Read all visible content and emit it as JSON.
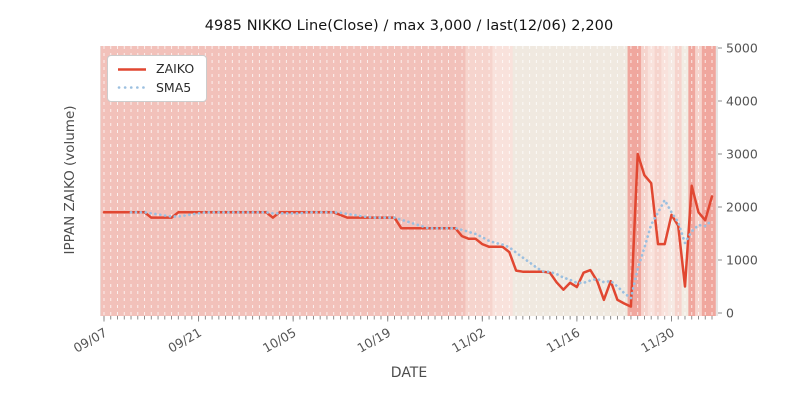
{
  "title": "4985 NIKKO Line(Close) / max 3,000 / last(12/06) 2,200",
  "legend": {
    "items": [
      {
        "label": "ZAIKO",
        "style": "solid",
        "color": "#e14731"
      },
      {
        "label": "SMA5",
        "style": "dotted",
        "color": "#9cc0e0"
      }
    ]
  },
  "chart_data": {
    "type": "line",
    "title": "4985 NIKKO Line(Close) / max 3,000 / last(12/06) 2,200",
    "xlabel": "DATE",
    "ylabel": "IPPAN ZAIKO (volume)",
    "ylim": [
      0,
      5000
    ],
    "yticks": [
      0,
      1000,
      2000,
      3000,
      4000,
      5000
    ],
    "x_is_daily_from": "09/07",
    "x_last_date": "12/06",
    "xtick_labels": [
      "09/07",
      "09/21",
      "10/05",
      "10/19",
      "11/02",
      "11/16",
      "11/30"
    ],
    "xtick_days": [
      0,
      14,
      28,
      42,
      56,
      70,
      84
    ],
    "grid": "vertical-dashed-white-per-day",
    "legend_position": "upper-left",
    "series": [
      {
        "name": "ZAIKO",
        "color": "#e14731",
        "style": "solid",
        "values": [
          1900,
          1900,
          1900,
          1900,
          1900,
          1900,
          1900,
          1800,
          1800,
          1800,
          1800,
          1900,
          1900,
          1900,
          1900,
          1900,
          1900,
          1900,
          1900,
          1900,
          1900,
          1900,
          1900,
          1900,
          1900,
          1800,
          1900,
          1900,
          1900,
          1900,
          1900,
          1900,
          1900,
          1900,
          1900,
          1850,
          1800,
          1800,
          1800,
          1800,
          1800,
          1800,
          1800,
          1800,
          1600,
          1600,
          1600,
          1600,
          1600,
          1600,
          1600,
          1600,
          1600,
          1450,
          1400,
          1400,
          1300,
          1250,
          1250,
          1250,
          1150,
          800,
          780,
          780,
          780,
          780,
          760,
          580,
          440,
          570,
          490,
          760,
          810,
          600,
          250,
          600,
          250,
          180,
          120,
          3000,
          2600,
          2450,
          1300,
          1300,
          1850,
          1650,
          500,
          2400,
          1900,
          1750,
          2200
        ]
      },
      {
        "name": "SMA5",
        "color": "#9cc0e0",
        "style": "dotted",
        "derived": "5-day simple moving average of ZAIKO"
      }
    ],
    "max_annotated": 3000,
    "last_annotated": 2200,
    "band_colors": {
      "d": "#f2c1ba",
      "p2": "#f6d4cd",
      "p1": "#f9e2dc",
      "c": "#f0e9e0",
      "cv": "#f6e9e3",
      "w": "#f2ece3",
      "s": "#f0a79e"
    },
    "bands_runlength": [
      [
        "d",
        54
      ],
      [
        "p2",
        4
      ],
      [
        "p1",
        3
      ],
      [
        "c",
        17
      ],
      [
        "s",
        2
      ],
      [
        "p2",
        1
      ],
      [
        "p1",
        1
      ],
      [
        "p2",
        1
      ],
      [
        "p1",
        1
      ],
      [
        "cv",
        1
      ],
      [
        "p2",
        1
      ],
      [
        "w",
        1
      ],
      [
        "s",
        1
      ],
      [
        "p2",
        1
      ],
      [
        "s",
        2
      ]
    ],
    "colors": {
      "plot_bg": "#e7e5e4",
      "grid": "#ffffff",
      "tick": "#808080",
      "tick_label": "#555555",
      "axis_label": "#4d4d4d",
      "title": "#141414"
    }
  }
}
